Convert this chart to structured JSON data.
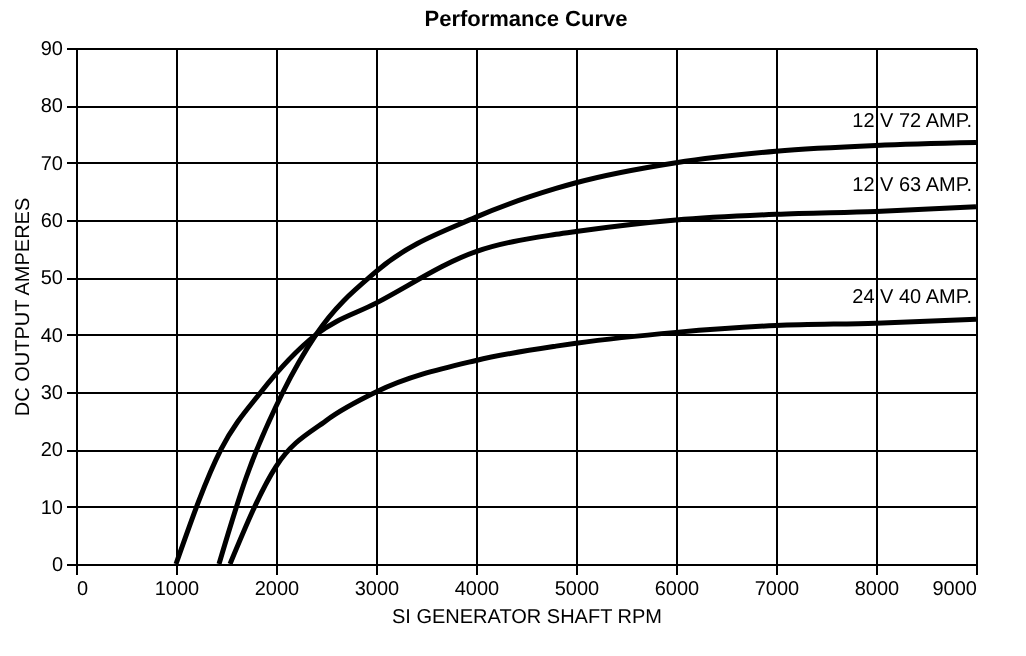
{
  "chart_data": {
    "type": "line",
    "title": "Performance Curve",
    "xlabel": "SI GENERATOR SHAFT RPM",
    "ylabel": "DC OUTPUT AMPERES",
    "xlim": [
      0,
      9000
    ],
    "xticks": [
      0,
      1000,
      2000,
      3000,
      4000,
      5000,
      6000,
      7000,
      8000,
      9000
    ],
    "ylim": [
      0,
      90
    ],
    "yticks": [
      0,
      10,
      20,
      30,
      40,
      50,
      60,
      70,
      80,
      90
    ],
    "grid": true,
    "legend": false,
    "marker": "none",
    "line_style": "solid",
    "series": [
      {
        "name": "12 V   72 AMP.",
        "color": "#000000",
        "x": [
          1430,
          1700,
          2070,
          2400,
          3000,
          4000,
          4800,
          5000,
          6000,
          7000,
          8000,
          9000
        ],
        "values": [
          0,
          15,
          30,
          40,
          51,
          60.5,
          65.5,
          66.5,
          70,
          72,
          73,
          73.5
        ]
      },
      {
        "name": "12 V   63 AMP.",
        "color": "#000000",
        "x": [
          1000,
          1450,
          1850,
          2400,
          3000,
          4000,
          4800,
          5000,
          6000,
          7000,
          8000,
          9000
        ],
        "values": [
          0,
          20,
          30,
          40,
          45.5,
          54.5,
          57.5,
          58,
          60,
          61,
          61.5,
          62.3
        ]
      },
      {
        "name": "24 V   40 AMP.",
        "color": "#000000",
        "x": [
          1540,
          2000,
          2500,
          3000,
          4000,
          4800,
          5000,
          6000,
          7000,
          8000,
          9000
        ],
        "values": [
          0,
          17,
          25,
          30,
          35.5,
          38,
          38.5,
          40.4,
          41.6,
          42,
          42.7
        ]
      }
    ]
  }
}
